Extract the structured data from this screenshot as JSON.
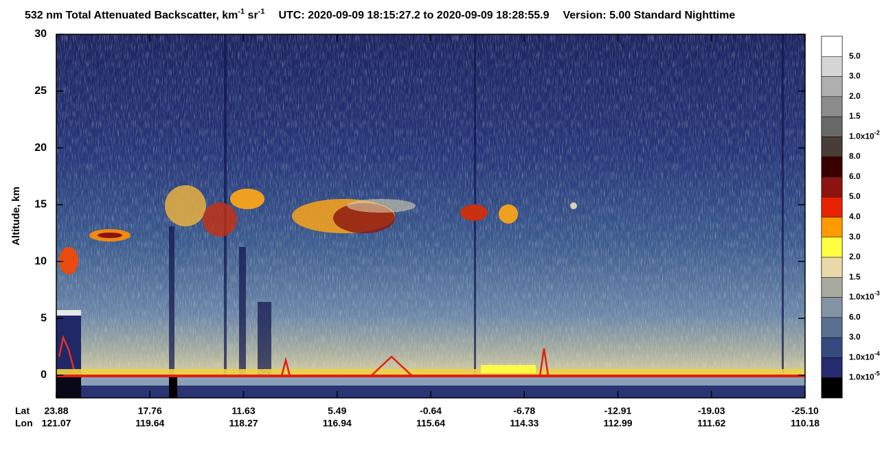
{
  "chart_data": {
    "type": "heatmap",
    "title": [
      "532 nm Total Attenuated Backscatter, km",
      "-1",
      " sr",
      "-1"
    ],
    "utc": "UTC:  2020-09-09 18:15:27.2  to  2020-09-09 18:28:55.9",
    "version": "Version: 5.00  Standard  Nighttime",
    "y_label": "Altitude, km",
    "ylim": [
      -2,
      30
    ],
    "yticks": [
      0,
      5,
      10,
      15,
      20,
      25,
      30
    ],
    "x_row_labels": [
      "Lat",
      "Lon"
    ],
    "xticks": [
      {
        "lat": "23.88",
        "lon": "121.07"
      },
      {
        "lat": "17.76",
        "lon": "119.64"
      },
      {
        "lat": "11.63",
        "lon": "118.27"
      },
      {
        "lat": "5.49",
        "lon": "116.94"
      },
      {
        "lat": "-0.64",
        "lon": "115.64"
      },
      {
        "lat": "-6.78",
        "lon": "114.33"
      },
      {
        "lat": "-12.91",
        "lon": "112.99"
      },
      {
        "lat": "-19.03",
        "lon": "111.62"
      },
      {
        "lat": "-25.10",
        "lon": "110.18"
      }
    ],
    "colorbar": {
      "colors": [
        "#ffffff",
        "#d6d6d6",
        "#b0b0b0",
        "#8c8c8c",
        "#686868",
        "#4a3c36",
        "#3a0000",
        "#8c1410",
        "#e82200",
        "#ff9a00",
        "#ffff40",
        "#ead8a8",
        "#a8aaa0",
        "#8494a6",
        "#5a7090",
        "#364a80",
        "#262a6e",
        "#000000"
      ],
      "labels": [
        [
          "5.0"
        ],
        [
          "3.0"
        ],
        [
          "2.0"
        ],
        [
          "1.5"
        ],
        [
          "1.0x10",
          "-2"
        ],
        [
          "8.0"
        ],
        [
          "6.0"
        ],
        [
          "5.0"
        ],
        [
          "4.0"
        ],
        [
          "3.0"
        ],
        [
          "2.0"
        ],
        [
          "1.5"
        ],
        [
          "1.0x10",
          "-3"
        ],
        [
          "6.0"
        ],
        [
          "3.0"
        ],
        [
          "1.0x10",
          "-4"
        ],
        [
          "1.0x10",
          "-5"
        ]
      ]
    }
  }
}
